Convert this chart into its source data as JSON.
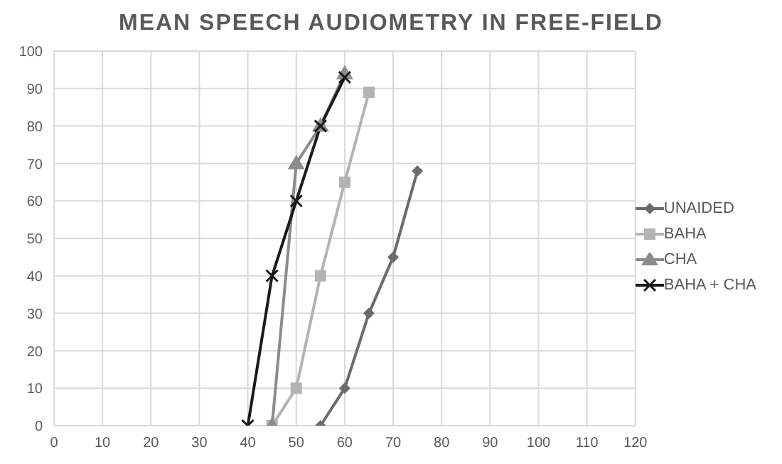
{
  "chart_data": {
    "type": "line",
    "title": "MEAN SPEECH AUDIOMETRY IN FREE-FIELD",
    "series": [
      {
        "name": "UNAIDED",
        "color": "#6b6b6b",
        "marker": "diamond",
        "x": [
          55,
          60,
          65,
          70,
          75
        ],
        "values": [
          0,
          10,
          30,
          45,
          68
        ]
      },
      {
        "name": "BAHA",
        "color": "#b3b3b3",
        "marker": "square",
        "x": [
          45,
          50,
          55,
          60,
          65
        ],
        "values": [
          0,
          10,
          40,
          65,
          89
        ]
      },
      {
        "name": "CHA",
        "color": "#8c8c8c",
        "marker": "triangle",
        "x": [
          45,
          50,
          55,
          60
        ],
        "values": [
          0,
          70,
          80,
          94
        ]
      },
      {
        "name": "BAHA + CHA",
        "color": "#1a1a1a",
        "marker": "cross",
        "x": [
          40,
          45,
          50,
          55,
          60
        ],
        "values": [
          0,
          40,
          60,
          80,
          93
        ]
      }
    ],
    "xlim": [
      0,
      120
    ],
    "xticks": [
      0,
      10,
      20,
      30,
      40,
      50,
      60,
      70,
      80,
      90,
      100,
      110,
      120
    ],
    "ylim": [
      0,
      100
    ],
    "yticks": [
      0,
      10,
      20,
      30,
      40,
      50,
      60,
      70,
      80,
      90,
      100
    ],
    "grid": true,
    "legend": "right"
  }
}
